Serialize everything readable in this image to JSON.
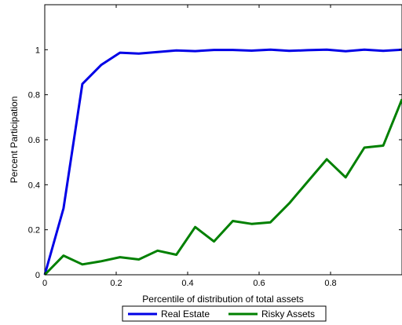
{
  "chart_data": {
    "type": "line",
    "title": "",
    "xlabel": "Percentile of distribution of total assets",
    "ylabel": "Percent Participation",
    "xlim": [
      0,
      1
    ],
    "ylim": [
      0,
      1.2
    ],
    "grid": false,
    "legend_position": "bottom-center",
    "xticks": [
      0,
      0.2,
      0.4,
      0.6,
      0.8
    ],
    "xtick_labels": [
      "0",
      "0.2",
      "0.4",
      "0.6",
      "0.8"
    ],
    "yticks": [
      0,
      0.2,
      0.4,
      0.6,
      0.8,
      1
    ],
    "ytick_labels": [
      "0",
      "0.2",
      "0.4",
      "0.6",
      "0.8",
      "1"
    ],
    "x": [
      0,
      0.0526,
      0.1053,
      0.1579,
      0.2105,
      0.2632,
      0.3158,
      0.3684,
      0.4211,
      0.4737,
      0.5263,
      0.5789,
      0.6316,
      0.6842,
      0.7368,
      0.7895,
      0.8421,
      0.8947,
      0.9474,
      1.0
    ],
    "series": [
      {
        "name": "Real Estate",
        "color": "#0000e6",
        "values": [
          0.0,
          0.295,
          0.848,
          0.932,
          0.987,
          0.983,
          0.99,
          0.997,
          0.994,
          0.999,
          0.999,
          0.996,
          1.0,
          0.995,
          0.998,
          1.0,
          0.993,
          1.0,
          0.995,
          1.0
        ]
      },
      {
        "name": "Risky Assets",
        "color": "#008000",
        "values": [
          0.0,
          0.085,
          0.046,
          0.06,
          0.078,
          0.068,
          0.107,
          0.089,
          0.212,
          0.148,
          0.239,
          0.226,
          0.233,
          0.317,
          0.415,
          0.513,
          0.433,
          0.565,
          0.574,
          0.78
        ]
      }
    ]
  }
}
